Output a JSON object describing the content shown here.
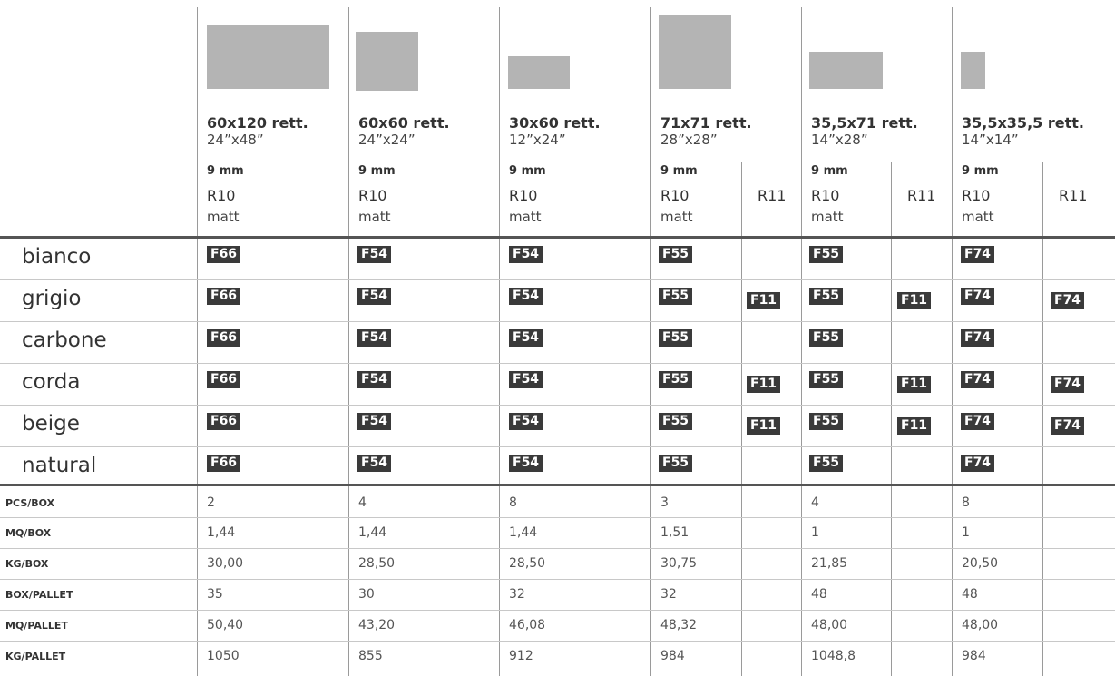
{
  "sizes": [
    {
      "title": "60x120 rett.",
      "inch": "24”x48”",
      "thickness": "9 mm",
      "rating": "R10",
      "finish": "matt",
      "r11": ""
    },
    {
      "title": "60x60 rett.",
      "inch": "24”x24”",
      "thickness": "9 mm",
      "rating": "R10",
      "finish": "matt",
      "r11": ""
    },
    {
      "title": "30x60 rett.",
      "inch": "12”x24”",
      "thickness": "9 mm",
      "rating": "R10",
      "finish": "matt",
      "r11": ""
    },
    {
      "title": "71x71 rett.",
      "inch": "28”x28”",
      "thickness": "9 mm",
      "rating": "R10",
      "finish": "matt",
      "r11": "R11"
    },
    {
      "title": "35,5x71 rett.",
      "inch": "14”x28”",
      "thickness": "9 mm",
      "rating": "R10",
      "finish": "matt",
      "r11": "R11"
    },
    {
      "title": "35,5x35,5 rett.",
      "inch": "14”x14”",
      "thickness": "9 mm",
      "rating": "R10",
      "finish": "matt",
      "r11": "R11"
    }
  ],
  "colors": [
    {
      "name": "bianco",
      "codes": [
        "F66",
        "F54",
        "F54",
        "F55",
        "",
        "F55",
        "",
        "F74",
        ""
      ]
    },
    {
      "name": "grigio",
      "codes": [
        "F66",
        "F54",
        "F54",
        "F55",
        "F11",
        "F55",
        "F11",
        "F74",
        "F74"
      ]
    },
    {
      "name": "carbone",
      "codes": [
        "F66",
        "F54",
        "F54",
        "F55",
        "",
        "F55",
        "",
        "F74",
        ""
      ]
    },
    {
      "name": "corda",
      "codes": [
        "F66",
        "F54",
        "F54",
        "F55",
        "F11",
        "F55",
        "F11",
        "F74",
        "F74"
      ]
    },
    {
      "name": "beige",
      "codes": [
        "F66",
        "F54",
        "F54",
        "F55",
        "F11",
        "F55",
        "F11",
        "F74",
        "F74"
      ]
    },
    {
      "name": "natural",
      "codes": [
        "F66",
        "F54",
        "F54",
        "F55",
        "",
        "F55",
        "",
        "F74",
        ""
      ]
    }
  ],
  "specs": [
    {
      "label": "PCS/BOX",
      "values": [
        "2",
        "4",
        "8",
        "3",
        "4",
        "8"
      ]
    },
    {
      "label": "MQ/BOX",
      "values": [
        "1,44",
        "1,44",
        "1,44",
        "1,51",
        "1",
        "1"
      ]
    },
    {
      "label": "KG/BOX",
      "values": [
        "30,00",
        "28,50",
        "28,50",
        "30,75",
        "21,85",
        "20,50"
      ]
    },
    {
      "label": "BOX/PALLET",
      "values": [
        "35",
        "30",
        "32",
        "32",
        "48",
        "48"
      ]
    },
    {
      "label": "MQ/PALLET",
      "values": [
        "50,40",
        "43,20",
        "46,08",
        "48,32",
        "48,00",
        "48,00"
      ]
    },
    {
      "label": "KG/PALLET",
      "values": [
        "1050",
        "855",
        "912",
        "984",
        "1048,8",
        "984"
      ]
    }
  ]
}
